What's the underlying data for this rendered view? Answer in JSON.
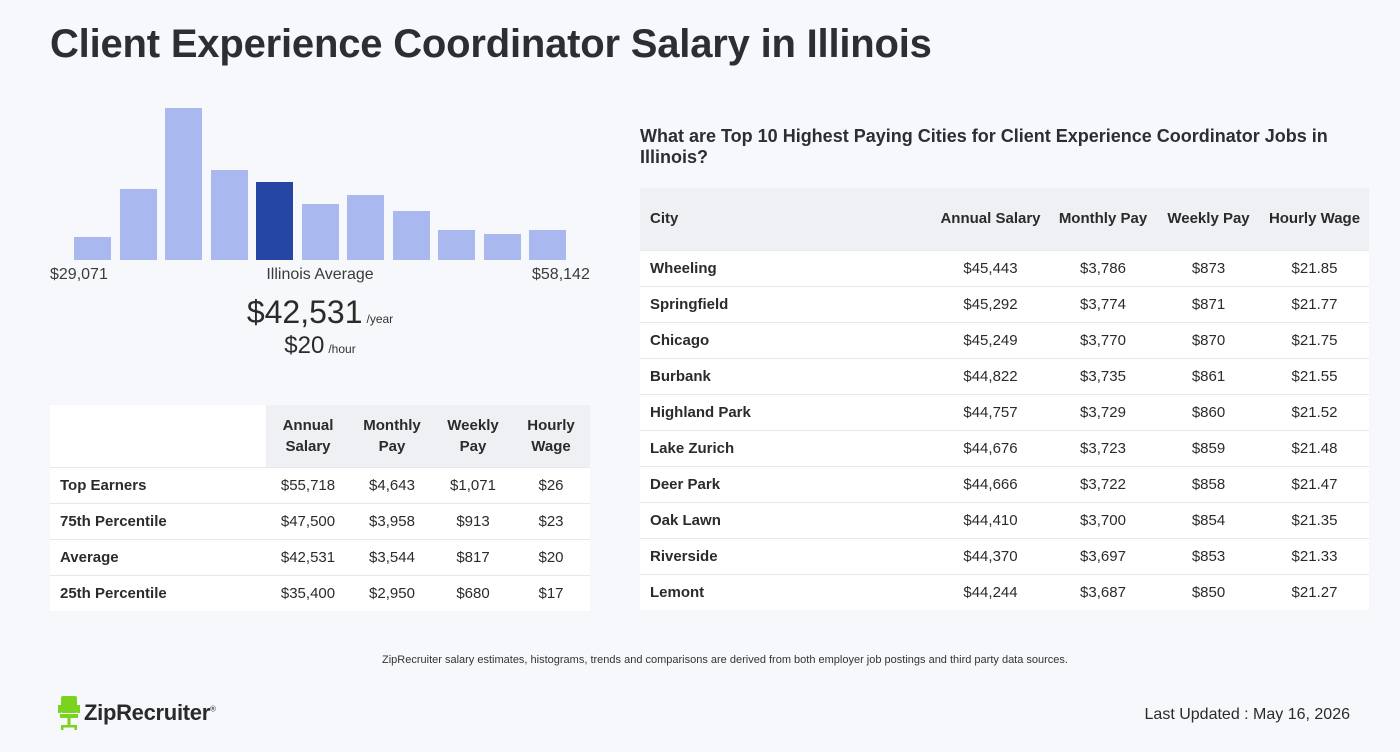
{
  "page": {
    "title": "Client Experience Coordinator Salary in Illinois"
  },
  "histogram": {
    "bar_heights": [
      0.15,
      0.47,
      1.0,
      0.59,
      0.51,
      0.37,
      0.43,
      0.32,
      0.2,
      0.17,
      0.2
    ],
    "highlight_index": 4,
    "colors": {
      "bar": "#a9b9f0",
      "highlight": "#2547a3"
    },
    "min_label": "$29,071",
    "max_label": "$58,142",
    "avg_label": "Illinois Average"
  },
  "summary": {
    "annual": "$42,531",
    "annual_unit": "/year",
    "hourly": "$20",
    "hourly_unit": "/hour"
  },
  "percentiles": {
    "headers": [
      "Annual Salary",
      "Monthly Pay",
      "Weekly Pay",
      "Hourly Wage"
    ],
    "rows": [
      {
        "label": "Top Earners",
        "values": [
          "$55,718",
          "$4,643",
          "$1,071",
          "$26"
        ]
      },
      {
        "label": "75th Percentile",
        "values": [
          "$47,500",
          "$3,958",
          "$913",
          "$23"
        ]
      },
      {
        "label": "Average",
        "values": [
          "$42,531",
          "$3,544",
          "$817",
          "$20"
        ]
      },
      {
        "label": "25th Percentile",
        "values": [
          "$35,400",
          "$2,950",
          "$680",
          "$17"
        ]
      }
    ]
  },
  "cities": {
    "title": "What are Top 10 Highest Paying Cities for Client Experience Coordinator Jobs in Illinois?",
    "headers": [
      "City",
      "Annual Salary",
      "Monthly Pay",
      "Weekly Pay",
      "Hourly Wage"
    ],
    "rows": [
      {
        "city": "Wheeling",
        "values": [
          "$45,443",
          "$3,786",
          "$873",
          "$21.85"
        ]
      },
      {
        "city": "Springfield",
        "values": [
          "$45,292",
          "$3,774",
          "$871",
          "$21.77"
        ]
      },
      {
        "city": "Chicago",
        "values": [
          "$45,249",
          "$3,770",
          "$870",
          "$21.75"
        ]
      },
      {
        "city": "Burbank",
        "values": [
          "$44,822",
          "$3,735",
          "$861",
          "$21.55"
        ]
      },
      {
        "city": "Highland Park",
        "values": [
          "$44,757",
          "$3,729",
          "$860",
          "$21.52"
        ]
      },
      {
        "city": "Lake Zurich",
        "values": [
          "$44,676",
          "$3,723",
          "$859",
          "$21.48"
        ]
      },
      {
        "city": "Deer Park",
        "values": [
          "$44,666",
          "$3,722",
          "$858",
          "$21.47"
        ]
      },
      {
        "city": "Oak Lawn",
        "values": [
          "$44,410",
          "$3,700",
          "$854",
          "$21.35"
        ]
      },
      {
        "city": "Riverside",
        "values": [
          "$44,370",
          "$3,697",
          "$853",
          "$21.33"
        ]
      },
      {
        "city": "Lemont",
        "values": [
          "$44,244",
          "$3,687",
          "$850",
          "$21.27"
        ]
      }
    ]
  },
  "footer": {
    "disclaimer": "ZipRecruiter salary estimates, histograms, trends and comparisons are derived from both employer job postings and third party data sources.",
    "logo_text": "ZipRecruiter",
    "logo_mark": "®",
    "logo_icon": "ziprecruiter-chair-icon",
    "logo_color": "#7bd21f",
    "last_updated": "Last Updated : May 16, 2026"
  }
}
